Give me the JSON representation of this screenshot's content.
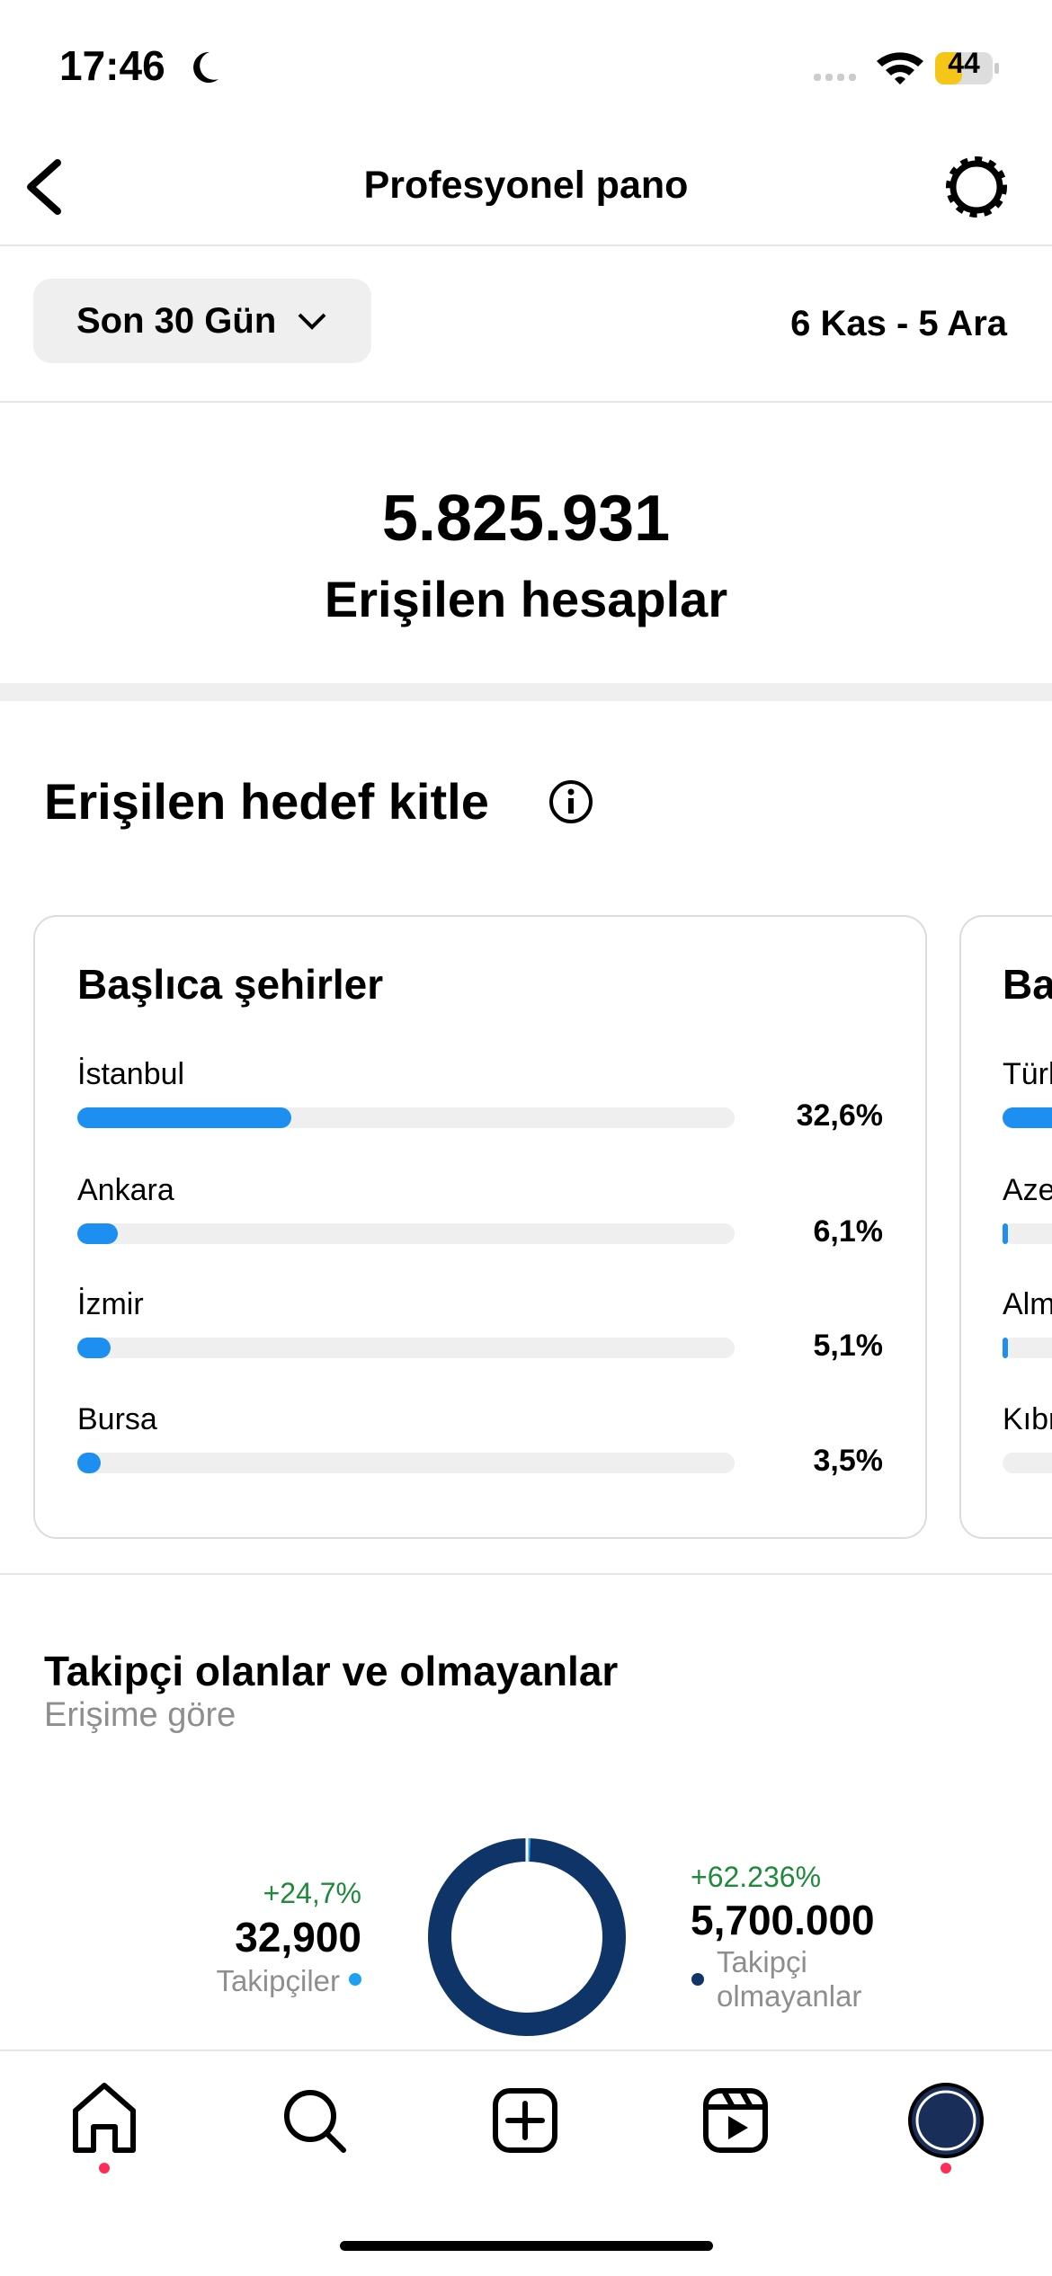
{
  "status": {
    "time": "17:46",
    "battery": "44"
  },
  "header": {
    "title": "Profesyonel pano"
  },
  "filter": {
    "period": "Son 30 Gün",
    "range": "6 Kas - 5 Ara"
  },
  "summary": {
    "value": "5.825.931",
    "label": "Erişilen hesaplar"
  },
  "audience": {
    "title": "Erişilen hedef kitle",
    "cities_card": {
      "title": "Başlıca şehirler",
      "items": [
        {
          "name": "İstanbul",
          "value": 32.6,
          "value_label": "32,6%"
        },
        {
          "name": "Ankara",
          "value": 6.1,
          "value_label": "6,1%"
        },
        {
          "name": "İzmir",
          "value": 5.1,
          "value_label": "5,1%"
        },
        {
          "name": "Bursa",
          "value": 3.5,
          "value_label": "3,5%"
        }
      ]
    },
    "second_card": {
      "title": "Ba",
      "items": [
        "Türk",
        "Aze",
        "Alm",
        "Kıbr"
      ]
    }
  },
  "followers": {
    "title": "Takipçi olanlar ve olmayanlar",
    "subtitle": "Erişime göre",
    "segments": [
      {
        "name": "Takipçiler",
        "change": "+24,7%",
        "value": 32900,
        "value_label": "32,900",
        "color": "#1da1f2"
      },
      {
        "name": "Takipçi olmayanlar",
        "change": "+62.236%",
        "value": 5700000,
        "value_label": "5,700.000",
        "color": "#0f3568"
      }
    ]
  }
}
